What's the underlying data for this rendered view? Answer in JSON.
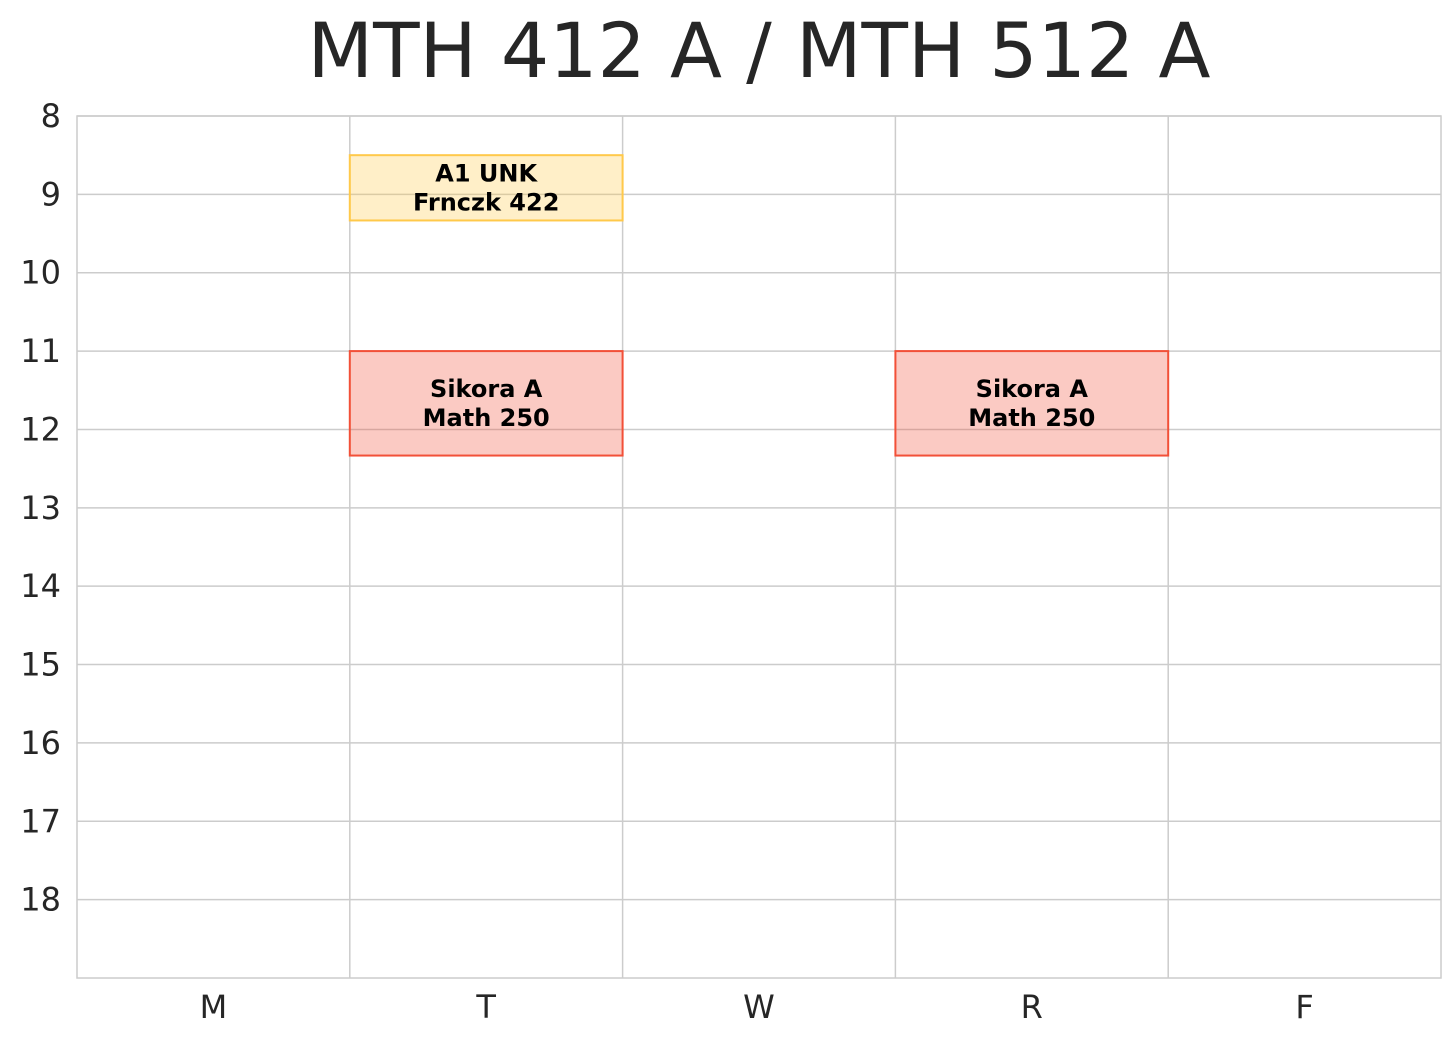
{
  "chart_data": {
    "type": "schedule",
    "title": "MTH 412 A / MTH 512 A",
    "categories": [
      "M",
      "T",
      "W",
      "R",
      "F"
    ],
    "y_ticks": [
      8,
      9,
      10,
      11,
      12,
      13,
      14,
      15,
      16,
      17,
      18
    ],
    "ylim": [
      8,
      19
    ],
    "y_inverted": true,
    "grid": true,
    "events": [
      {
        "day": "T",
        "start": 8.5,
        "end": 9.333,
        "lines": [
          "A1 UNK",
          "Frnczk 422"
        ],
        "fill": "#FFC94A",
        "edge": "#FFC94A"
      },
      {
        "day": "T",
        "start": 11.0,
        "end": 12.333,
        "lines": [
          "Sikora A",
          "Math 250"
        ],
        "fill": "#F25038",
        "edge": "#F25038"
      },
      {
        "day": "R",
        "start": 11.0,
        "end": 12.333,
        "lines": [
          "Sikora A",
          "Math 250"
        ],
        "fill": "#F25038",
        "edge": "#F25038"
      }
    ]
  }
}
